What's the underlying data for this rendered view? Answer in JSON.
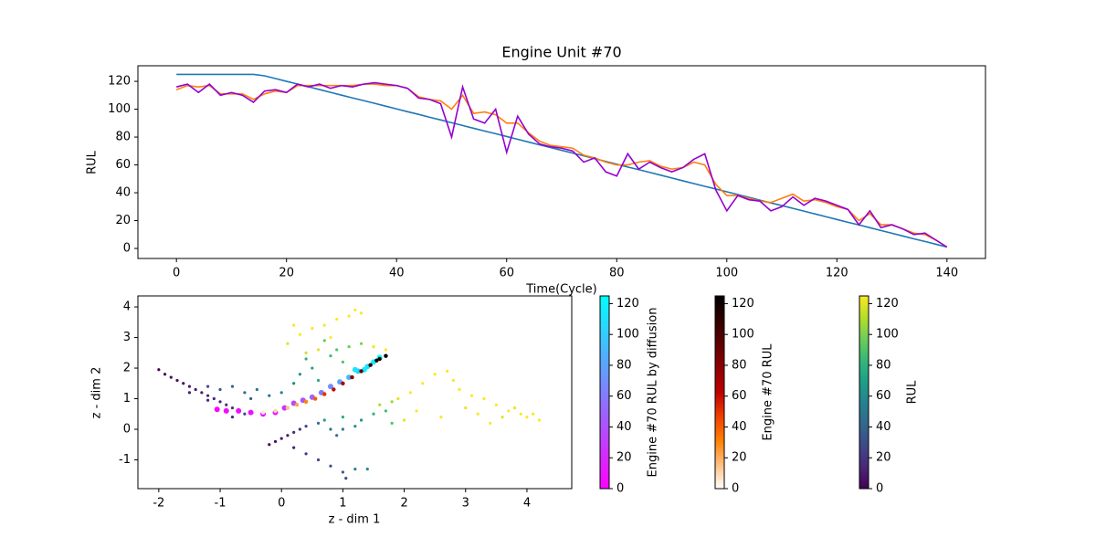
{
  "chart_data": [
    {
      "type": "line",
      "title": "Engine Unit #70",
      "xlabel": "Time(Cycle)",
      "ylabel": "RUL",
      "xlim": [
        -7,
        147
      ],
      "ylim": [
        -7.2,
        131.2
      ],
      "xticks": [
        0,
        20,
        40,
        60,
        80,
        100,
        120,
        140
      ],
      "yticks": [
        0,
        20,
        40,
        60,
        80,
        100,
        120
      ],
      "x": [
        0,
        2,
        4,
        6,
        8,
        10,
        12,
        14,
        16,
        18,
        20,
        22,
        24,
        26,
        28,
        30,
        32,
        34,
        36,
        38,
        40,
        42,
        44,
        46,
        48,
        50,
        52,
        54,
        56,
        58,
        60,
        62,
        64,
        66,
        68,
        70,
        72,
        74,
        76,
        78,
        80,
        82,
        84,
        86,
        88,
        90,
        92,
        94,
        96,
        98,
        100,
        102,
        104,
        106,
        108,
        110,
        112,
        114,
        116,
        118,
        120,
        122,
        124,
        126,
        128,
        130,
        132,
        134,
        136,
        138,
        140
      ],
      "series": [
        {
          "color": "#1f77b4",
          "values": [
            125,
            125,
            125,
            125,
            125,
            125,
            125,
            125,
            124.0,
            122.0,
            120.0,
            118.1,
            116.1,
            114.1,
            112.1,
            110.1,
            108.1,
            106.2,
            104.2,
            102.2,
            100.2,
            98.2,
            96.3,
            94.2,
            92.3,
            90.3,
            88.3,
            86.3,
            84.3,
            82.4,
            80.4,
            78.4,
            76.4,
            74.4,
            72.4,
            70.5,
            68.5,
            66.5,
            64.5,
            62.5,
            60.5,
            58.5,
            56.6,
            54.6,
            52.6,
            50.6,
            48.6,
            46.6,
            44.6,
            42.7,
            40.7,
            38.7,
            36.7,
            34.7,
            32.7,
            30.8,
            28.8,
            26.8,
            24.8,
            22.8,
            20.8,
            18.8,
            16.9,
            14.9,
            12.9,
            10.9,
            8.9,
            6.9,
            5.0,
            3.0,
            1.0
          ]
        },
        {
          "color": "#ff7f0e",
          "values": [
            114,
            117,
            116,
            117,
            111,
            111,
            111,
            107,
            111,
            113,
            112,
            117,
            117,
            117,
            117,
            117,
            117,
            118,
            118,
            117,
            117,
            115,
            109,
            107,
            106,
            100,
            110,
            97,
            98,
            96,
            90,
            90,
            83,
            77,
            74,
            73,
            72,
            67,
            65,
            62,
            60,
            60,
            62,
            63,
            59,
            57,
            58,
            62,
            60,
            46,
            38,
            38,
            36,
            34,
            33,
            36,
            39,
            34,
            35,
            33,
            30,
            28,
            20,
            25,
            17,
            17,
            14,
            11,
            10,
            6,
            1
          ]
        },
        {
          "color": "#9400d3",
          "values": [
            116,
            118,
            112,
            118,
            110,
            112,
            110,
            105,
            113,
            114,
            112,
            118,
            116,
            118,
            115,
            117,
            116,
            118,
            119,
            118,
            117,
            115,
            108,
            107,
            104,
            80,
            116,
            93,
            90,
            100,
            69,
            95,
            82,
            75,
            73,
            72,
            70,
            62,
            65,
            55,
            52,
            68,
            57,
            62,
            58,
            55,
            58,
            64,
            68,
            42,
            27,
            38,
            35,
            34,
            27,
            30,
            37,
            31,
            36,
            34,
            31,
            28,
            17,
            27,
            15,
            17,
            14,
            10,
            11,
            6,
            1
          ]
        }
      ]
    },
    {
      "type": "scatter",
      "xlabel": "z - dim 1",
      "ylabel": "z - dim 2",
      "xlim": [
        -2.34,
        4.73
      ],
      "ylim": [
        -1.94,
        4.36
      ],
      "xticks": [
        -2,
        -1,
        0,
        1,
        2,
        3,
        4
      ],
      "yticks": [
        -1,
        0,
        1,
        2,
        3,
        4
      ],
      "series": [
        {
          "name": "RUL",
          "clim": [
            0,
            125
          ],
          "cticks": [
            0,
            20,
            40,
            60,
            80,
            100,
            120
          ],
          "colormap": [
            "#440154",
            "#482878",
            "#3e4989",
            "#31688e",
            "#26828e",
            "#1f9e89",
            "#35b779",
            "#6ece58",
            "#b5de2b",
            "#fde725"
          ],
          "x": [
            -2,
            -1.9,
            -1.8,
            -1.7,
            -1.6,
            -1.5,
            -1.4,
            -1.3,
            -1.2,
            -1.1,
            -1.0,
            -0.9,
            -0.8,
            -0.7,
            -0.6,
            -1.5,
            -1.2,
            -0.9,
            -0.8,
            -1.0,
            -0.8,
            -0.6,
            -0.4,
            -0.2,
            0.0,
            -0.5,
            -1.2,
            0.3,
            0.5,
            0.6,
            0.8,
            0.9,
            1.1,
            1.3,
            1.5,
            0.4,
            0.2,
            1.0,
            0.7,
            0.1,
            0.3,
            0.5,
            0.7,
            0.9,
            1.1,
            1.2,
            0.6,
            0.4,
            1.3,
            0.8,
            0.2,
            -0.2,
            -0.1,
            0.0,
            0.1,
            0.2,
            0.3,
            0.4,
            0.2,
            0.4,
            0.6,
            0.8,
            1.0,
            1.05,
            1.2,
            1.4,
            0.9,
            1.0,
            1.2,
            1.3,
            0.6,
            0.8,
            1.5,
            1.7,
            1.0,
            0.7,
            1.8,
            1.6,
            1.9,
            2.1,
            2.3,
            2.5,
            2.7,
            2.8,
            2.9,
            3.1,
            3.3,
            3.5,
            3.7,
            3.9,
            4.1,
            4.2,
            3.8,
            4.0,
            3.6,
            3.0,
            2.6,
            2.2,
            2.0,
            3.4,
            3.2,
            1.8,
            1.5,
            1.7
          ],
          "y": [
            1.95,
            1.8,
            1.7,
            1.6,
            1.5,
            1.4,
            1.3,
            1.2,
            1.1,
            1.0,
            0.9,
            0.8,
            0.7,
            0.6,
            0.5,
            1.2,
            0.95,
            0.6,
            0.4,
            1.3,
            1.4,
            1.2,
            1.3,
            1.1,
            1.2,
            1.0,
            1.4,
            1.8,
            2.0,
            1.6,
            2.4,
            2.6,
            2.7,
            2.8,
            2.7,
            2.3,
            1.5,
            2.2,
            2.9,
            2.8,
            3.1,
            3.3,
            3.4,
            3.6,
            3.7,
            3.9,
            2.6,
            2.5,
            3.8,
            3.0,
            3.4,
            -0.5,
            -0.4,
            -0.3,
            -0.2,
            -0.1,
            0.0,
            0.1,
            -0.6,
            -0.8,
            -1.0,
            -1.2,
            -1.4,
            -1.6,
            -1.3,
            -1.3,
            -0.2,
            0.0,
            0.1,
            0.3,
            0.2,
            0.0,
            0.5,
            0.6,
            0.4,
            0.3,
            0.2,
            0.8,
            1.0,
            1.2,
            1.5,
            1.8,
            1.9,
            1.6,
            1.3,
            1.1,
            1.0,
            0.8,
            0.6,
            0.5,
            0.5,
            0.3,
            0.7,
            0.4,
            0.4,
            0.7,
            0.4,
            0.6,
            0.3,
            0.2,
            0.5,
            0.9,
            2.7,
            2.6
          ],
          "values": [
            2,
            3,
            4,
            5,
            6,
            8,
            9,
            10,
            12,
            14,
            15,
            18,
            20,
            22,
            25,
            10,
            15,
            12,
            14,
            35,
            40,
            45,
            50,
            45,
            55,
            38,
            30,
            65,
            70,
            75,
            85,
            90,
            95,
            100,
            100,
            80,
            60,
            90,
            95,
            120,
            125,
            125,
            125,
            125,
            125,
            125,
            120,
            115,
            125,
            125,
            125,
            3,
            5,
            8,
            10,
            15,
            18,
            22,
            12,
            20,
            28,
            32,
            35,
            30,
            55,
            60,
            50,
            55,
            60,
            65,
            45,
            48,
            80,
            85,
            75,
            70,
            90,
            110,
            120,
            125,
            125,
            125,
            125,
            125,
            125,
            125,
            125,
            125,
            125,
            125,
            125,
            125,
            120,
            125,
            120,
            120,
            125,
            125,
            120,
            125,
            125,
            105,
            125,
            125
          ]
        },
        {
          "name": "Engine #70 RUL by diffusion",
          "clim": [
            0,
            125
          ],
          "cticks": [
            0,
            20,
            40,
            60,
            80,
            100,
            120
          ],
          "colormap": [
            "#ff00ff",
            "#00ffff"
          ],
          "x": [
            -1.05,
            -0.9,
            -0.7,
            -0.5,
            -0.3,
            -0.1,
            0.05,
            0.2,
            0.35,
            0.5,
            0.65,
            0.8,
            0.95,
            1.1,
            1.25,
            1.4,
            1.5,
            1.6,
            1.35,
            1.2
          ],
          "y": [
            0.65,
            0.6,
            0.6,
            0.55,
            0.5,
            0.55,
            0.7,
            0.85,
            0.95,
            1.05,
            1.2,
            1.4,
            1.55,
            1.7,
            1.9,
            2.05,
            2.2,
            2.35,
            1.95,
            1.95
          ],
          "values": [
            2,
            4,
            6,
            8,
            10,
            14,
            25,
            35,
            42,
            50,
            60,
            70,
            80,
            90,
            100,
            110,
            118,
            125,
            115,
            112
          ]
        },
        {
          "name": "Engine #70 RUL",
          "clim": [
            0,
            125
          ],
          "cticks": [
            0,
            20,
            40,
            60,
            80,
            100,
            120
          ],
          "colormap": [
            "#ffffff",
            "#ffbf80",
            "#ff8000",
            "#ef4000",
            "#bf0000",
            "#8f0000",
            "#600000",
            "#300000",
            "#000000"
          ],
          "x": [
            -0.3,
            -0.1,
            0.1,
            0.25,
            0.4,
            0.55,
            0.7,
            0.85,
            1.0,
            1.15,
            1.3,
            1.45,
            1.6,
            1.7,
            1.55
          ],
          "y": [
            0.55,
            0.6,
            0.7,
            0.8,
            0.9,
            1.0,
            1.15,
            1.3,
            1.5,
            1.7,
            1.9,
            2.1,
            2.3,
            2.4,
            2.25
          ],
          "values": [
            5,
            10,
            15,
            22,
            30,
            40,
            50,
            60,
            70,
            80,
            95,
            110,
            120,
            125,
            118
          ]
        }
      ]
    }
  ]
}
